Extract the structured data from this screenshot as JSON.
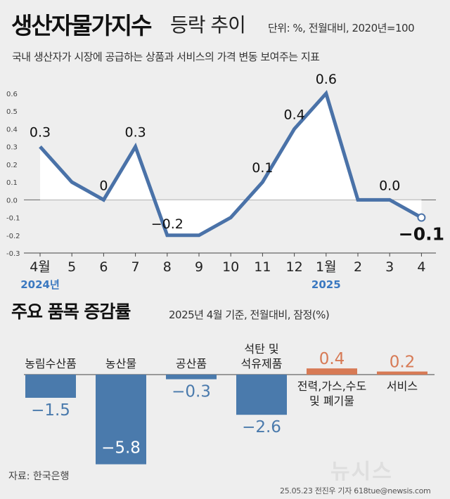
{
  "header": {
    "title": "생산자물가지수",
    "subtitle": "등락 추이",
    "unit": "단위: %, 전월대비, 2020년=100",
    "description": "국내 생산자가 시장에 공급하는 상품과 서비스의 가격 변동 보여주는 지표"
  },
  "chart_data": [
    {
      "type": "line",
      "categories": [
        "4월",
        "5",
        "6",
        "7",
        "8",
        "9",
        "10",
        "11",
        "12",
        "1월",
        "2",
        "3",
        "4"
      ],
      "year_labels": [
        {
          "index": 0,
          "text": "2024년"
        },
        {
          "index": 9,
          "text": "2025"
        }
      ],
      "values": [
        0.3,
        0.1,
        0.0,
        0.3,
        -0.2,
        -0.2,
        -0.1,
        0.1,
        0.4,
        0.6,
        0.0,
        0.0,
        -0.1
      ],
      "data_labels": [
        {
          "index": 0,
          "text": "0.3"
        },
        {
          "index": 2,
          "text": "0"
        },
        {
          "index": 3,
          "text": "0.3"
        },
        {
          "index": 4,
          "text": "−0.2"
        },
        {
          "index": 7,
          "text": "0.1"
        },
        {
          "index": 8,
          "text": "0.4"
        },
        {
          "index": 9,
          "text": "0.6"
        },
        {
          "index": 11,
          "text": "0.0"
        },
        {
          "index": 12,
          "text": "−0.1"
        }
      ],
      "yticks": [
        "0.6",
        "0.5",
        "0.4",
        "0.3",
        "0.2",
        "0.1",
        "0.0",
        "-0.1",
        "-0.2",
        "-0.3"
      ],
      "ylim": [
        -0.3,
        0.6
      ],
      "grid": false,
      "line_color": "#4a72a8"
    },
    {
      "type": "bar",
      "title": "주요 품목 증감률",
      "subtitle": "2025년 4월 기준, 전월대비, 잠정(%)",
      "categories": [
        "농림수산품",
        "농산물",
        "공산품",
        "석탄 및\n석유제품",
        "전력,가스,수도\n및 폐기물",
        "서비스"
      ],
      "values": [
        -1.5,
        -5.8,
        -0.3,
        -2.6,
        0.4,
        0.2
      ],
      "value_labels": [
        "−1.5",
        "−5.8",
        "−0.3",
        "−2.6",
        "0.4",
        "0.2"
      ],
      "negative_color": "#4a7aac",
      "positive_color": "#d77a55"
    }
  ],
  "footer": {
    "source": "자료: 한국은행",
    "logo": "뉴시스",
    "credit": "25.05.23 전진우 기자 618tue@newsis.com"
  }
}
